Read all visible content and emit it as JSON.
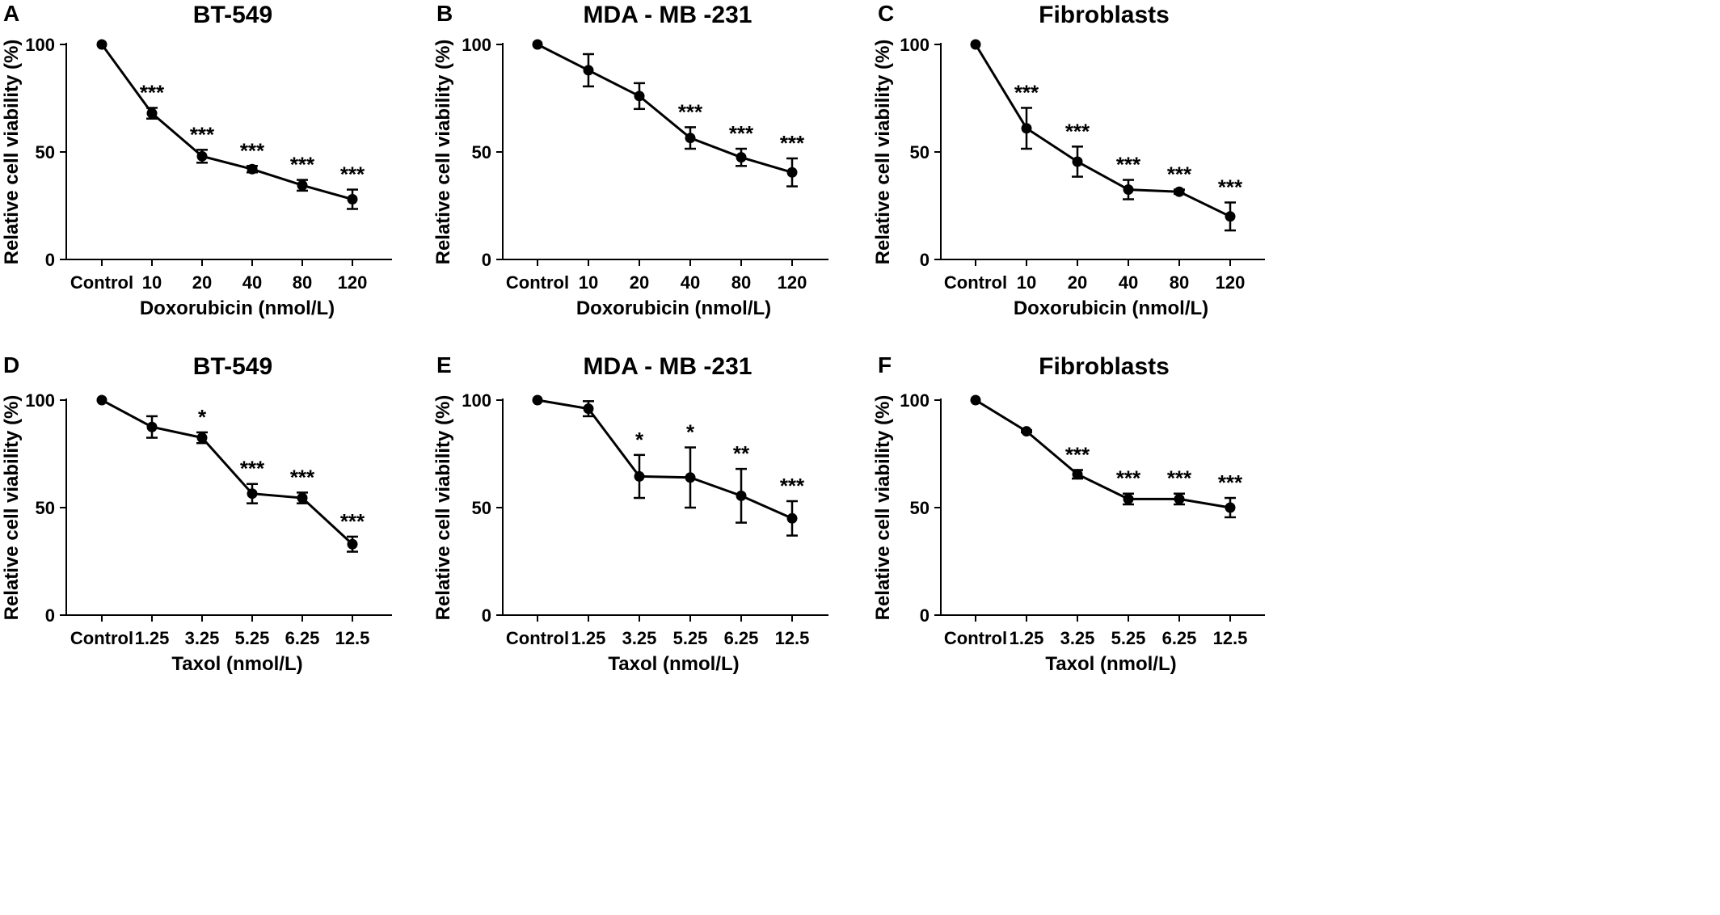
{
  "chart_data": [
    {
      "panel": "A",
      "type": "line",
      "title": "BT-549",
      "xlabel": "Doxorubicin (nmol/L)",
      "ylabel": "Relative cell viability (%)",
      "categories": [
        "Control",
        "10",
        "20",
        "40",
        "80",
        "120"
      ],
      "values": [
        100,
        68,
        48,
        42,
        34.5,
        28
      ],
      "errors": [
        0,
        2.5,
        3,
        1.5,
        2.5,
        4.5
      ],
      "significance": [
        "",
        "***",
        "***",
        "***",
        "***",
        "***"
      ],
      "yticks": [
        0,
        50,
        100
      ],
      "ylim": [
        0,
        100
      ],
      "grid": false
    },
    {
      "panel": "B",
      "type": "line",
      "title": "MDA - MB -231",
      "xlabel": "Doxorubicin (nmol/L)",
      "ylabel": "Relative cell viability (%)",
      "categories": [
        "Control",
        "10",
        "20",
        "40",
        "80",
        "120"
      ],
      "values": [
        100,
        88,
        76,
        56.5,
        47.5,
        40.5
      ],
      "errors": [
        0,
        7.5,
        6,
        5,
        4,
        6.5
      ],
      "significance": [
        "",
        "",
        "",
        "***",
        "***",
        "***"
      ],
      "yticks": [
        0,
        50,
        100
      ],
      "ylim": [
        0,
        100
      ],
      "grid": false
    },
    {
      "panel": "C",
      "type": "line",
      "title": "Fibroblasts",
      "xlabel": "Doxorubicin (nmol/L)",
      "ylabel": "Relative cell viability (%)",
      "categories": [
        "Control",
        "10",
        "20",
        "40",
        "80",
        "120"
      ],
      "values": [
        100,
        61,
        45.5,
        32.5,
        31.5,
        20
      ],
      "errors": [
        0,
        9.5,
        7,
        4.5,
        1,
        6.5
      ],
      "significance": [
        "",
        "***",
        "***",
        "***",
        "***",
        "***"
      ],
      "yticks": [
        0,
        50,
        100
      ],
      "ylim": [
        0,
        100
      ],
      "grid": false
    },
    {
      "panel": "D",
      "type": "line",
      "title": "BT-549",
      "xlabel": "Taxol (nmol/L)",
      "ylabel": "Relative cell viability (%)",
      "categories": [
        "Control",
        "1.25",
        "3.25",
        "5.25",
        "6.25",
        "12.5"
      ],
      "values": [
        100,
        87.5,
        82.5,
        56.5,
        54.5,
        33
      ],
      "errors": [
        0,
        5,
        2.5,
        4.5,
        2.5,
        3.5
      ],
      "significance": [
        "",
        "",
        "*",
        "***",
        "***",
        "***"
      ],
      "yticks": [
        0,
        50,
        100
      ],
      "ylim": [
        0,
        100
      ],
      "grid": false
    },
    {
      "panel": "E",
      "type": "line",
      "title": "MDA - MB -231",
      "xlabel": "Taxol (nmol/L)",
      "ylabel": "Relative cell viability (%)",
      "categories": [
        "Control",
        "1.25",
        "3.25",
        "5.25",
        "6.25",
        "12.5"
      ],
      "values": [
        100,
        96,
        64.5,
        64,
        55.5,
        45
      ],
      "errors": [
        0,
        3.5,
        10,
        14,
        12.5,
        8
      ],
      "significance": [
        "",
        "",
        "*",
        "*",
        "**",
        "***"
      ],
      "yticks": [
        0,
        50,
        100
      ],
      "ylim": [
        0,
        100
      ],
      "grid": false
    },
    {
      "panel": "F",
      "type": "line",
      "title": "Fibroblasts",
      "xlabel": "Taxol (nmol/L)",
      "ylabel": "Relative cell viability (%)",
      "categories": [
        "Control",
        "1.25",
        "3.25",
        "5.25",
        "6.25",
        "12.5"
      ],
      "values": [
        100,
        85.5,
        65.5,
        54,
        54,
        50
      ],
      "errors": [
        0,
        0.5,
        2,
        2.5,
        2.5,
        4.5
      ],
      "significance": [
        "",
        "",
        "***",
        "***",
        "***",
        "***"
      ],
      "yticks": [
        0,
        50,
        100
      ],
      "ylim": [
        0,
        100
      ],
      "grid": false
    }
  ],
  "style": {
    "line_color": "#000000",
    "marker_color": "#000000",
    "background": "#ffffff"
  }
}
